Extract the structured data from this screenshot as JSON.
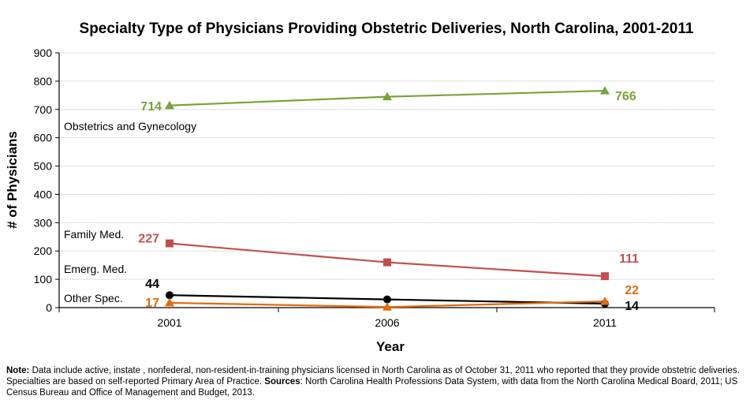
{
  "chart_data": {
    "type": "line",
    "title": "Specialty Type of Physicians Providing Obstetric Deliveries, North Carolina, 2001-2011",
    "xlabel": "Year",
    "ylabel": "# of Physicians",
    "categories": [
      "2001",
      "2006",
      "2011"
    ],
    "ylim": [
      0,
      900
    ],
    "yticks": [
      "0",
      "100",
      "200",
      "300",
      "400",
      "500",
      "600",
      "700",
      "800",
      "900"
    ],
    "grid": true,
    "series": [
      {
        "name": "Obstetrics and Gynecology",
        "values": [
          714,
          745,
          766
        ],
        "color": "#77A33A",
        "marker": "triangle",
        "labels": [
          "714",
          "",
          "766"
        ]
      },
      {
        "name": "Family Med.",
        "values": [
          227,
          160,
          111
        ],
        "color": "#C0504D",
        "marker": "square",
        "labels": [
          "227",
          "",
          "111"
        ]
      },
      {
        "name": "Emerg. Med.",
        "values": [
          44,
          29,
          14
        ],
        "color": "#000000",
        "marker": "circle",
        "labels": [
          "44",
          "",
          "14"
        ]
      },
      {
        "name": "Other Spec.",
        "values": [
          17,
          2,
          22
        ],
        "color": "#E36C09",
        "marker": "triangle",
        "labels": [
          "17",
          "",
          "22"
        ]
      }
    ]
  },
  "note": {
    "note_label": "Note:",
    "note_text": " Data include active, instate , nonfederal, non-resident-in-training physicians licensed in North Carolina as of October 31, 2011 who reported that they provide obstetric deliveries. Specialties are based on self-reported Primary Area of Practice. ",
    "sources_label": "Sources",
    "sources_text": ": North Carolina Health Professions Data System, with data from the North Carolina Medical Board, 2011; US Census Bureau and Office of Management and Budget, 2013."
  }
}
